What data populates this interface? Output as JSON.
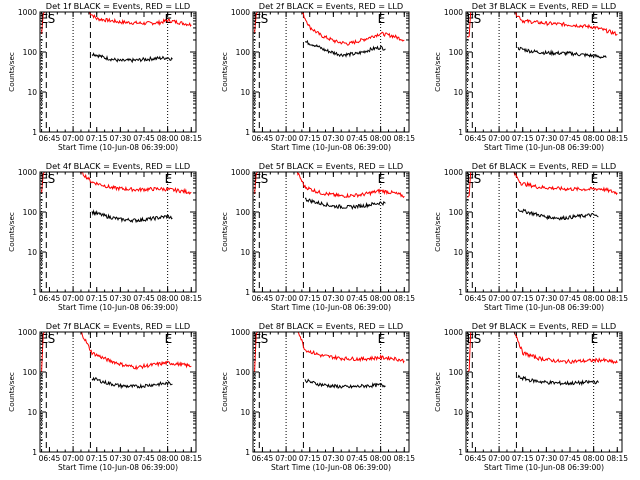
{
  "figure": {
    "background": "#ffffff",
    "axis_color": "#000000"
  },
  "chart_data": [
    {
      "type": "line",
      "title": "Det 1f BLACK = Events, RED = LLD",
      "xlabel": "Start Time (10-Jun-08 06:39:00)",
      "ylabel": "Counts/sec",
      "yscale": "log",
      "ylim": [
        1,
        1000
      ],
      "yticks": [
        "1",
        "10",
        "100",
        "1000"
      ],
      "xticks": [
        "06:45",
        "07:00",
        "07:15",
        "07:30",
        "07:45",
        "08:00",
        "08:15"
      ],
      "markers": {
        "dotted": [
          "06:40",
          "07:00",
          "08:00"
        ],
        "dashed": [
          "06:43",
          "07:11"
        ],
        "labels": [
          "E",
          "S",
          "E"
        ]
      },
      "series": [
        {
          "color": "#ff0000",
          "points": [
            [
              "06:40",
              280
            ],
            [
              "06:41",
              900
            ],
            [
              "06:42",
              1000
            ],
            [
              "07:10",
              1000
            ],
            [
              "07:15",
              680
            ],
            [
              "07:30",
              560
            ],
            [
              "07:45",
              520
            ],
            [
              "07:55",
              540
            ],
            [
              "08:00",
              620
            ],
            [
              "08:08",
              540
            ],
            [
              "08:15",
              480
            ]
          ]
        },
        {
          "color": "#000000",
          "points": [
            [
              "07:12",
              92
            ],
            [
              "07:20",
              72
            ],
            [
              "07:30",
              60
            ],
            [
              "07:40",
              62
            ],
            [
              "07:50",
              68
            ],
            [
              "08:00",
              72
            ],
            [
              "08:03",
              66
            ]
          ]
        }
      ]
    },
    {
      "type": "line",
      "title": "Det 2f BLACK = Events, RED = LLD",
      "xlabel": "Start Time (10-Jun-08 06:39:00)",
      "ylabel": "Counts/sec",
      "yscale": "log",
      "ylim": [
        1,
        1000
      ],
      "yticks": [
        "1",
        "10",
        "100",
        "1000"
      ],
      "xticks": [
        "06:45",
        "07:00",
        "07:15",
        "07:30",
        "07:45",
        "08:00",
        "08:15"
      ],
      "markers": {
        "dotted": [
          "06:40",
          "07:00",
          "08:00"
        ],
        "dashed": [
          "06:43",
          "07:11"
        ],
        "labels": [
          "E",
          "S",
          "E"
        ]
      },
      "series": [
        {
          "color": "#ff0000",
          "points": [
            [
              "06:40",
              300
            ],
            [
              "06:41",
              900
            ],
            [
              "06:42",
              1000
            ],
            [
              "07:10",
              1000
            ],
            [
              "07:15",
              420
            ],
            [
              "07:22",
              260
            ],
            [
              "07:32",
              180
            ],
            [
              "07:40",
              160
            ],
            [
              "07:50",
              210
            ],
            [
              "08:00",
              290
            ],
            [
              "08:08",
              250
            ],
            [
              "08:15",
              200
            ]
          ]
        },
        {
          "color": "#000000",
          "points": [
            [
              "07:12",
              180
            ],
            [
              "07:18",
              150
            ],
            [
              "07:25",
              110
            ],
            [
              "07:35",
              85
            ],
            [
              "07:45",
              90
            ],
            [
              "07:55",
              120
            ],
            [
              "08:00",
              130
            ],
            [
              "08:03",
              120
            ]
          ]
        }
      ]
    },
    {
      "type": "line",
      "title": "Det 3f BLACK = Events, RED = LLD",
      "xlabel": "Start Time (10-Jun-08 06:39:00)",
      "ylabel": "Counts/sec",
      "yscale": "log",
      "ylim": [
        1,
        1000
      ],
      "yticks": [
        "1",
        "10",
        "100",
        "1000"
      ],
      "xticks": [
        "06:45",
        "07:00",
        "07:15",
        "07:30",
        "07:45",
        "08:00",
        "08:15"
      ],
      "markers": {
        "dotted": [
          "06:40",
          "07:00",
          "08:00"
        ],
        "dashed": [
          "06:43",
          "07:11"
        ],
        "labels": [
          "E",
          "S",
          "E"
        ]
      },
      "series": [
        {
          "color": "#ff0000",
          "points": [
            [
              "06:40",
              230
            ],
            [
              "06:41",
              250
            ],
            [
              "06:42",
              1000
            ],
            [
              "07:10",
              1000
            ],
            [
              "07:15",
              600
            ],
            [
              "07:30",
              520
            ],
            [
              "07:45",
              480
            ],
            [
              "08:00",
              420
            ],
            [
              "08:08",
              340
            ],
            [
              "08:15",
              280
            ]
          ]
        },
        {
          "color": "#000000",
          "points": [
            [
              "07:12",
              125
            ],
            [
              "07:20",
              105
            ],
            [
              "07:30",
              95
            ],
            [
              "07:45",
              92
            ],
            [
              "08:00",
              80
            ],
            [
              "08:08",
              72
            ]
          ]
        }
      ]
    },
    {
      "type": "line",
      "title": "Det 4f BLACK = Events, RED = LLD",
      "xlabel": "Start Time (10-Jun-08 06:39:00)",
      "ylabel": "Counts/sec",
      "yscale": "log",
      "ylim": [
        1,
        1000
      ],
      "yticks": [
        "1",
        "10",
        "100",
        "1000"
      ],
      "xticks": [
        "06:45",
        "07:00",
        "07:15",
        "07:30",
        "07:45",
        "08:00",
        "08:15"
      ],
      "markers": {
        "dotted": [
          "06:40",
          "07:00",
          "08:00"
        ],
        "dashed": [
          "06:43",
          "07:11"
        ],
        "labels": [
          "E",
          "S",
          "E"
        ]
      },
      "series": [
        {
          "color": "#ff0000",
          "points": [
            [
              "06:40",
              300
            ],
            [
              "06:41",
              900
            ],
            [
              "06:42",
              1000
            ],
            [
              "07:05",
              1000
            ],
            [
              "07:12",
              560
            ],
            [
              "07:25",
              400
            ],
            [
              "07:40",
              360
            ],
            [
              "07:55",
              380
            ],
            [
              "08:05",
              350
            ],
            [
              "08:15",
              310
            ]
          ]
        },
        {
          "color": "#000000",
          "points": [
            [
              "07:12",
              100
            ],
            [
              "07:20",
              80
            ],
            [
              "07:30",
              65
            ],
            [
              "07:40",
              62
            ],
            [
              "07:50",
              68
            ],
            [
              "08:00",
              78
            ],
            [
              "08:03",
              70
            ]
          ]
        }
      ]
    },
    {
      "type": "line",
      "title": "Det 5f BLACK = Events, RED = LLD",
      "xlabel": "Start Time (10-Jun-08 06:39:00)",
      "ylabel": "Counts/sec",
      "yscale": "log",
      "ylim": [
        1,
        1000
      ],
      "yticks": [
        "1",
        "10",
        "100",
        "1000"
      ],
      "xticks": [
        "06:45",
        "07:00",
        "07:15",
        "07:30",
        "07:45",
        "08:00",
        "08:15"
      ],
      "markers": {
        "dotted": [
          "06:40",
          "07:00",
          "08:00"
        ],
        "dashed": [
          "06:43",
          "07:11"
        ],
        "labels": [
          "E",
          "S",
          "E"
        ]
      },
      "series": [
        {
          "color": "#ff0000",
          "points": [
            [
              "06:40",
              280
            ],
            [
              "06:41",
              900
            ],
            [
              "06:42",
              1000
            ],
            [
              "07:07",
              1000
            ],
            [
              "07:12",
              420
            ],
            [
              "07:22",
              300
            ],
            [
              "07:35",
              250
            ],
            [
              "07:48",
              270
            ],
            [
              "08:00",
              340
            ],
            [
              "08:08",
              300
            ],
            [
              "08:15",
              250
            ]
          ]
        },
        {
          "color": "#000000",
          "points": [
            [
              "07:12",
              210
            ],
            [
              "07:20",
              170
            ],
            [
              "07:30",
              140
            ],
            [
              "07:40",
              132
            ],
            [
              "07:50",
              145
            ],
            [
              "08:00",
              170
            ],
            [
              "08:03",
              165
            ]
          ]
        }
      ]
    },
    {
      "type": "line",
      "title": "Det 6f BLACK = Events, RED = LLD",
      "xlabel": "Start Time (10-Jun-08 06:39:00)",
      "ylabel": "Counts/sec",
      "yscale": "log",
      "ylim": [
        1,
        1000
      ],
      "yticks": [
        "1",
        "10",
        "100",
        "1000"
      ],
      "xticks": [
        "06:45",
        "07:00",
        "07:15",
        "07:30",
        "07:45",
        "08:00",
        "08:15"
      ],
      "markers": {
        "dotted": [
          "06:40",
          "07:00",
          "08:00"
        ],
        "dashed": [
          "06:43",
          "07:11"
        ],
        "labels": [
          "E",
          "S",
          "E"
        ]
      },
      "series": [
        {
          "color": "#ff0000",
          "points": [
            [
              "06:40",
              230
            ],
            [
              "06:41",
              260
            ],
            [
              "06:42",
              1000
            ],
            [
              "07:09",
              1000
            ],
            [
              "07:14",
              520
            ],
            [
              "07:25",
              420
            ],
            [
              "07:40",
              380
            ],
            [
              "07:55",
              370
            ],
            [
              "08:05",
              380
            ],
            [
              "08:15",
              300
            ]
          ]
        },
        {
          "color": "#000000",
          "points": [
            [
              "07:12",
              115
            ],
            [
              "07:20",
              95
            ],
            [
              "07:30",
              75
            ],
            [
              "07:40",
              70
            ],
            [
              "07:50",
              78
            ],
            [
              "08:00",
              85
            ],
            [
              "08:03",
              75
            ]
          ]
        }
      ]
    },
    {
      "type": "line",
      "title": "Det 7f BLACK = Events, RED = LLD",
      "xlabel": "Start Time (10-Jun-08 06:39:00)",
      "ylabel": "Counts/sec",
      "yscale": "log",
      "ylim": [
        1,
        1000
      ],
      "yticks": [
        "1",
        "10",
        "100",
        "1000"
      ],
      "xticks": [
        "06:45",
        "07:00",
        "07:15",
        "07:30",
        "07:45",
        "08:00",
        "08:15"
      ],
      "markers": {
        "dotted": [
          "06:40",
          "07:00",
          "08:00"
        ],
        "dashed": [
          "06:43",
          "07:11"
        ],
        "labels": [
          "E",
          "S",
          "E"
        ]
      },
      "series": [
        {
          "color": "#ff0000",
          "points": [
            [
              "06:40",
              100
            ],
            [
              "06:41",
              900
            ],
            [
              "06:42",
              1000
            ],
            [
              "07:05",
              1000
            ],
            [
              "07:12",
              300
            ],
            [
              "07:22",
              200
            ],
            [
              "07:32",
              150
            ],
            [
              "07:40",
              130
            ],
            [
              "07:50",
              150
            ],
            [
              "08:00",
              170
            ],
            [
              "08:08",
              155
            ],
            [
              "08:15",
              140
            ]
          ]
        },
        {
          "color": "#000000",
          "points": [
            [
              "07:12",
              70
            ],
            [
              "07:20",
              55
            ],
            [
              "07:30",
              45
            ],
            [
              "07:40",
              43
            ],
            [
              "07:50",
              48
            ],
            [
              "08:00",
              52
            ],
            [
              "08:03",
              50
            ]
          ]
        }
      ]
    },
    {
      "type": "line",
      "title": "Det 8f BLACK = Events, RED = LLD",
      "xlabel": "Start Time (10-Jun-08 06:39:00)",
      "ylabel": "Counts/sec",
      "yscale": "log",
      "ylim": [
        1,
        1000
      ],
      "yticks": [
        "1",
        "10",
        "100",
        "1000"
      ],
      "xticks": [
        "06:45",
        "07:00",
        "07:15",
        "07:30",
        "07:45",
        "08:00",
        "08:15"
      ],
      "markers": {
        "dotted": [
          "06:40",
          "07:00",
          "08:00"
        ],
        "dashed": [
          "06:43",
          "07:11"
        ],
        "labels": [
          "E",
          "S",
          "E"
        ]
      },
      "series": [
        {
          "color": "#ff0000",
          "points": [
            [
              "06:40",
              100
            ],
            [
              "06:41",
              900
            ],
            [
              "06:42",
              1000
            ],
            [
              "07:08",
              1000
            ],
            [
              "07:12",
              360
            ],
            [
              "07:22",
              260
            ],
            [
              "07:35",
              220
            ],
            [
              "07:48",
              210
            ],
            [
              "08:00",
              230
            ],
            [
              "08:08",
              220
            ],
            [
              "08:15",
              190
            ]
          ]
        },
        {
          "color": "#000000",
          "points": [
            [
              "07:12",
              62
            ],
            [
              "07:20",
              50
            ],
            [
              "07:30",
              44
            ],
            [
              "07:40",
              42
            ],
            [
              "07:50",
              45
            ],
            [
              "08:00",
              47
            ],
            [
              "08:03",
              45
            ]
          ]
        }
      ]
    },
    {
      "type": "line",
      "title": "Det 9f BLACK = Events, RED = LLD",
      "xlabel": "Start Time (10-Jun-08 06:39:00)",
      "ylabel": "Counts/sec",
      "yscale": "log",
      "ylim": [
        1,
        1000
      ],
      "yticks": [
        "1",
        "10",
        "100",
        "1000"
      ],
      "xticks": [
        "06:45",
        "07:00",
        "07:15",
        "07:30",
        "07:45",
        "08:00",
        "08:15"
      ],
      "markers": {
        "dotted": [
          "06:40",
          "07:00",
          "08:00"
        ],
        "dashed": [
          "06:43",
          "07:11"
        ],
        "labels": [
          "E",
          "S",
          "E"
        ]
      },
      "series": [
        {
          "color": "#ff0000",
          "points": [
            [
              "06:40",
              100
            ],
            [
              "06:41",
              110
            ],
            [
              "06:42",
              1000
            ],
            [
              "07:10",
              1000
            ],
            [
              "07:15",
              300
            ],
            [
              "07:25",
              220
            ],
            [
              "07:40",
              180
            ],
            [
              "07:55",
              190
            ],
            [
              "08:05",
              200
            ],
            [
              "08:15",
              170
            ]
          ]
        },
        {
          "color": "#000000",
          "points": [
            [
              "07:12",
              75
            ],
            [
              "07:20",
              62
            ],
            [
              "07:30",
              55
            ],
            [
              "07:40",
              52
            ],
            [
              "07:50",
              53
            ],
            [
              "08:00",
              57
            ],
            [
              "08:03",
              54
            ]
          ]
        }
      ]
    }
  ]
}
